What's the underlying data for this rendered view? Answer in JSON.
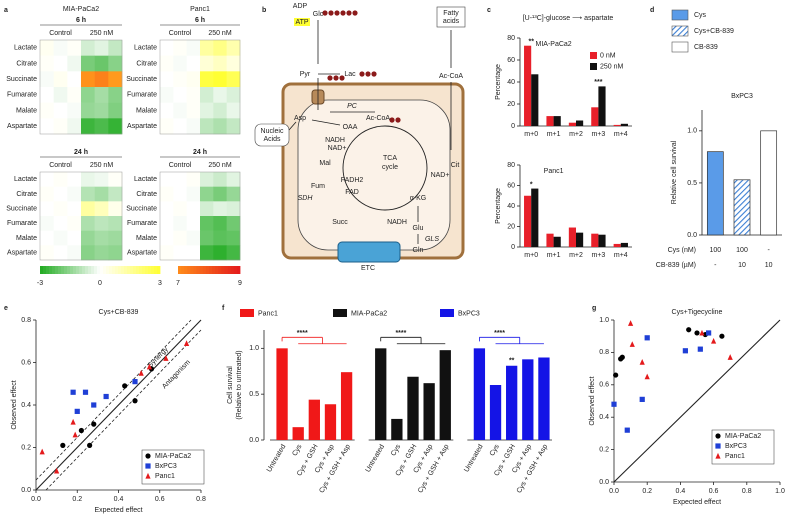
{
  "panel_labels": [
    "a",
    "b",
    "c",
    "d",
    "e",
    "f",
    "g"
  ],
  "pathway": {
    "labels": [
      "Glc",
      "ADP",
      "ATP",
      "Pyr",
      "Lac",
      "Fatty",
      "acids",
      "Ac-CoA",
      "Nucleic",
      "Acids",
      "Asp",
      "OAA",
      "PC",
      "Ac-CoA",
      "Cit",
      "TCA",
      "cycle",
      "Mal",
      "Fum",
      "SDH",
      "Succ",
      "α-KG",
      "Glu",
      "GLS",
      "Gln",
      "ETC",
      "NADH",
      "NAD+",
      "FADH2",
      "FAD",
      "NADH",
      "NAD+"
    ]
  },
  "chart_data": [
    {
      "type": "heatmap",
      "title": "MIA-PaCa2",
      "title_color": "#222222",
      "subtitle": "6 h",
      "column_groups": [
        "Control",
        "250 nM"
      ],
      "rows": [
        "Lactate",
        "Citrate",
        "Succinate",
        "Fumarate",
        "Malate",
        "Aspartate"
      ],
      "values": [
        [
          0.2,
          -0.1,
          0.1,
          -0.6,
          -0.4,
          -0.8
        ],
        [
          0.1,
          0,
          -0.2,
          -1.8,
          -2.0,
          -1.6
        ],
        [
          -0.1,
          0.2,
          0,
          6.8,
          7.2,
          6.5
        ],
        [
          0,
          -0.2,
          0.1,
          -1.5,
          -1.2,
          -1.6
        ],
        [
          0.1,
          0,
          -0.1,
          -1.4,
          -1.3,
          -1.7
        ],
        [
          0,
          0.1,
          -0.2,
          -2.6,
          -2.4,
          -2.7
        ]
      ]
    },
    {
      "type": "heatmap",
      "title": "Panc1",
      "title_color": "#e41a1c",
      "subtitle": "6 h",
      "column_groups": [
        "Control",
        "250 nM"
      ],
      "rows": [
        "Lactate",
        "Citrate",
        "Succinate",
        "Fumarate",
        "Malate",
        "Aspartate"
      ],
      "values": [
        [
          0,
          0.1,
          -0.1,
          1.4,
          1.8,
          1.2
        ],
        [
          0.1,
          -0.1,
          0,
          0.6,
          0.9,
          0.5
        ],
        [
          0,
          0.1,
          0.2,
          2.8,
          3,
          2.5
        ],
        [
          -0.1,
          0,
          0.1,
          -0.6,
          -0.3,
          -0.5
        ],
        [
          0,
          -0.1,
          0.1,
          -0.4,
          -0.6,
          -0.3
        ],
        [
          0.1,
          0,
          -0.1,
          -0.9,
          -1.1,
          -0.8
        ]
      ]
    },
    {
      "type": "heatmap",
      "subtitle": "24 h",
      "column_groups": [
        "Control",
        "250 nM"
      ],
      "rows": [
        "Lactate",
        "Citrate",
        "Succinate",
        "Fumarate",
        "Malate",
        "Aspartate"
      ],
      "values": [
        [
          0,
          0.1,
          0,
          -0.3,
          -0.2,
          0.1
        ],
        [
          0.1,
          0,
          -0.1,
          -1.0,
          -1.2,
          -0.8
        ],
        [
          0,
          0.1,
          0,
          1.4,
          1.0,
          0.3
        ],
        [
          -0.1,
          0,
          0.1,
          -1.1,
          -0.9,
          -1.0
        ],
        [
          0,
          -0.1,
          0,
          -1.4,
          -1.2,
          -1.3
        ],
        [
          0.1,
          0,
          -0.1,
          -1.6,
          -1.4,
          -1.5
        ]
      ]
    },
    {
      "type": "heatmap",
      "subtitle": "24 h",
      "column_groups": [
        "Control",
        "250 nM"
      ],
      "rows": [
        "Lactate",
        "Citrate",
        "Succinate",
        "Fumarate",
        "Malate",
        "Aspartate"
      ],
      "values": [
        [
          0,
          0,
          0.1,
          -0.5,
          -0.7,
          -0.4
        ],
        [
          0.1,
          0,
          -0.1,
          -1.5,
          -1.8,
          -1.4
        ],
        [
          0,
          0.1,
          0,
          -0.6,
          -0.4,
          -0.5
        ],
        [
          0,
          -0.1,
          0,
          -2.1,
          -2.3,
          -1.9
        ],
        [
          0,
          0.1,
          -0.1,
          -2.0,
          -2.2,
          -2.1
        ],
        [
          0.1,
          0,
          0,
          -2.6,
          -2.8,
          -2.5
        ]
      ]
    },
    {
      "type": "colorbar",
      "ticks": [
        -3,
        0,
        3,
        7,
        9
      ],
      "colors": [
        "#1faa1f",
        "#ffffff",
        "#ffff33",
        "#ff8c1a",
        "#e41a1c"
      ]
    },
    {
      "type": "bar",
      "title": "[U-¹³C]-glucose ⟶ aspartate",
      "subtitle": "MIA-PaCa2",
      "ylabel": "Percentage",
      "categories": [
        "m+0",
        "m+1",
        "m+2",
        "m+3",
        "m+4"
      ],
      "ylim": [
        0,
        80
      ],
      "yticks": [
        0,
        20,
        40,
        60,
        80
      ],
      "series": [
        {
          "name": "0 nM",
          "color": "#e8202a",
          "values": [
            73,
            9,
            3,
            17,
            1
          ]
        },
        {
          "name": "250 nM",
          "color": "#111111",
          "values": [
            47,
            9,
            5,
            36,
            2
          ]
        }
      ],
      "annotations": [
        {
          "text": "**",
          "category": 0
        },
        {
          "text": "***",
          "category": 3
        }
      ]
    },
    {
      "type": "bar",
      "subtitle": "Panc1",
      "ylabel": "Percentage",
      "categories": [
        "m+0",
        "m+1",
        "m+2",
        "m+3",
        "m+4"
      ],
      "ylim": [
        0,
        80
      ],
      "yticks": [
        0,
        20,
        40,
        60,
        80
      ],
      "series": [
        {
          "color": "#e8202a",
          "values": [
            50,
            13,
            19,
            13,
            3
          ]
        },
        {
          "color": "#111111",
          "values": [
            57,
            10,
            14,
            12,
            4
          ]
        }
      ],
      "annotations": [
        {
          "text": "*",
          "category": 0
        }
      ]
    },
    {
      "type": "bar",
      "title": "BxPC3",
      "title_color": "#1f3fd6",
      "ylabel": "Relative cell survival",
      "categories": [
        "Cys",
        "Cys+CB-839",
        "CB-839"
      ],
      "values": [
        0.8,
        0.53,
        1.0
      ],
      "colors": [
        "#5a9be8",
        "#5a9be8",
        "#ffffff"
      ],
      "patterns": [
        "solid",
        "hatch",
        "solid"
      ],
      "ylim": [
        0,
        1.2
      ],
      "yticks": [
        {
          "value": 0,
          "label": "0.0"
        },
        {
          "value": 0.5,
          "label": "0.5"
        },
        {
          "value": 1,
          "label": "1.0"
        }
      ],
      "table": [
        {
          "label": "Cys (nM)",
          "cells": [
            "100",
            "100",
            "-"
          ]
        },
        {
          "label": "CB-839 (µM)",
          "cells": [
            "-",
            "10",
            "10"
          ]
        }
      ]
    },
    {
      "type": "scatter",
      "title": "Cys+CB-839",
      "xlabel": "Expected effect",
      "ylabel": "Observed effect",
      "xlim": [
        0,
        0.8
      ],
      "ylim": [
        0,
        0.8
      ],
      "xticks": [
        {
          "value": 0,
          "label": "0.0"
        },
        0.2,
        0.4,
        0.6,
        0.8
      ],
      "yticks": [
        {
          "value": 0,
          "label": "0.0"
        },
        0.2,
        0.4,
        0.6,
        0.8
      ],
      "annotations": [
        "Synergy",
        "Antagonism"
      ],
      "series": [
        {
          "name": "MIA-PaCa2",
          "color": "#000000",
          "marker": "circle",
          "x": [
            0.13,
            0.22,
            0.26,
            0.28,
            0.43,
            0.48,
            0.56
          ],
          "y": [
            0.21,
            0.28,
            0.21,
            0.31,
            0.49,
            0.42,
            0.57
          ]
        },
        {
          "name": "BxPC3",
          "color": "#1f3fd6",
          "marker": "square",
          "x": [
            0.18,
            0.24,
            0.28,
            0.34,
            0.2,
            0.48
          ],
          "y": [
            0.46,
            0.46,
            0.4,
            0.44,
            0.37,
            0.51
          ]
        },
        {
          "name": "Panc1",
          "color": "#e41a1c",
          "marker": "triangle",
          "x": [
            0.03,
            0.1,
            0.19,
            0.18,
            0.51,
            0.55,
            0.63,
            0.73
          ],
          "y": [
            0.18,
            0.09,
            0.26,
            0.32,
            0.55,
            0.58,
            0.62,
            0.69
          ]
        }
      ]
    },
    {
      "type": "grouped_bar",
      "ylabel": [
        "Cell survival",
        "(Relative to untreated)"
      ],
      "categories": [
        "Untreated",
        "Cys",
        "Cys + GSH",
        "Cys + Asp",
        "Cys + GSH + Asp"
      ],
      "ylim": [
        0,
        1.2
      ],
      "yticks": [
        {
          "value": 0,
          "label": "0.0"
        },
        {
          "value": 0.5,
          "label": "0.5"
        },
        {
          "value": 1,
          "label": "1.0"
        }
      ],
      "series": [
        {
          "name": "Panc1",
          "color": "#f01818",
          "values": [
            1.0,
            0.14,
            0.44,
            0.39,
            0.74
          ],
          "significance": "****"
        },
        {
          "name": "MIA-PaCa2",
          "color": "#111111",
          "values": [
            1.0,
            0.23,
            0.69,
            0.62,
            0.98
          ],
          "significance": "****"
        },
        {
          "name": "BxPC3",
          "color": "#1414e6",
          "values": [
            1.0,
            0.6,
            0.81,
            0.88,
            0.9
          ],
          "significance": "****",
          "annotations": [
            {
              "text": "**",
              "category": 2
            }
          ]
        }
      ]
    },
    {
      "type": "scatter",
      "title": "Cys+Tigecycline",
      "xlabel": "Expected effect",
      "ylabel": "Observed effect",
      "xlim": [
        0,
        1
      ],
      "ylim": [
        0,
        1
      ],
      "xticks": [
        {
          "value": 0,
          "label": "0.0"
        },
        0.2,
        0.4,
        0.6,
        0.8,
        {
          "value": 1,
          "label": "1.0"
        }
      ],
      "yticks": [
        {
          "value": 0,
          "label": "0.0"
        },
        0.2,
        0.4,
        0.6,
        0.8,
        {
          "value": 1,
          "label": "1.0"
        }
      ],
      "series": [
        {
          "name": "MIA-PaCa2",
          "color": "#000000",
          "marker": "circle",
          "x": [
            0.01,
            0.04,
            0.05,
            0.45,
            0.5,
            0.55,
            0.65
          ],
          "y": [
            0.66,
            0.76,
            0.77,
            0.94,
            0.92,
            0.91,
            0.9
          ]
        },
        {
          "name": "BxPC3",
          "color": "#1f3fd6",
          "marker": "square",
          "x": [
            0,
            0.08,
            0.17,
            0.2,
            0.43,
            0.52,
            0.57
          ],
          "y": [
            0.48,
            0.32,
            0.51,
            0.89,
            0.81,
            0.82,
            0.92
          ]
        },
        {
          "name": "Panc1",
          "color": "#e41a1c",
          "marker": "triangle",
          "x": [
            0.1,
            0.11,
            0.17,
            0.2,
            0.53,
            0.6,
            0.7
          ],
          "y": [
            0.98,
            0.85,
            0.74,
            0.65,
            0.92,
            0.87,
            0.77
          ]
        }
      ]
    }
  ]
}
